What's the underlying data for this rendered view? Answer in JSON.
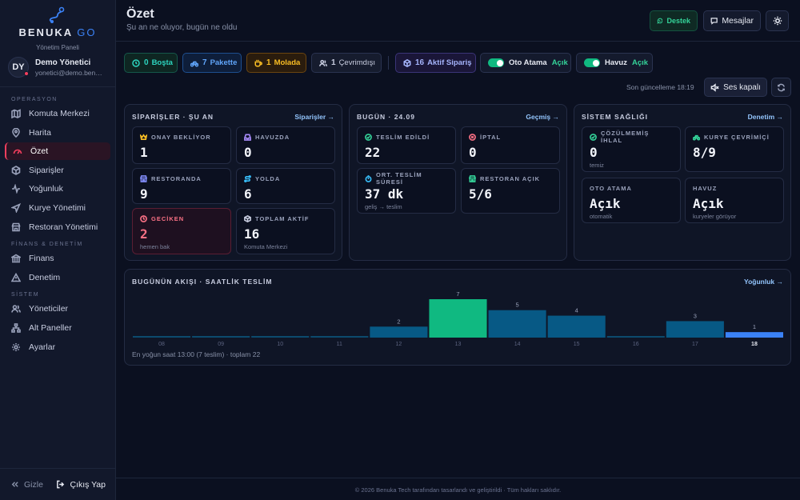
{
  "sidebar": {
    "brand_main": "BENUKA",
    "brand_accent": "GO",
    "panel_label": "Yönetim Paneli",
    "user": {
      "initials": "DY",
      "name": "Demo Yönetici",
      "email": "yonetici@demo.benukago.com"
    },
    "sections": [
      {
        "title": "OPERASYON",
        "items": [
          {
            "label": "Komuta Merkezi",
            "icon": "map-icon"
          },
          {
            "label": "Harita",
            "icon": "map-pin-icon"
          },
          {
            "label": "Özet",
            "icon": "gauge-icon",
            "active": true
          },
          {
            "label": "Siparişler",
            "icon": "package-icon"
          },
          {
            "label": "Yoğunluk",
            "icon": "activity-icon"
          },
          {
            "label": "Kurye Yönetimi",
            "icon": "navigation-icon"
          },
          {
            "label": "Restoran Yönetimi",
            "icon": "store-icon"
          }
        ]
      },
      {
        "title": "FİNANS & DENETİM",
        "items": [
          {
            "label": "Finans",
            "icon": "bank-icon"
          },
          {
            "label": "Denetim",
            "icon": "warning-icon"
          }
        ]
      },
      {
        "title": "SİSTEM",
        "items": [
          {
            "label": "Yöneticiler",
            "icon": "users-icon"
          },
          {
            "label": "Alt Paneller",
            "icon": "sitemap-icon"
          },
          {
            "label": "Ayarlar",
            "icon": "gear-icon"
          }
        ]
      }
    ],
    "hide_label": "Gizle",
    "logout_label": "Çıkış Yap"
  },
  "header": {
    "title": "Özet",
    "subtitle": "Şu an ne oluyor, bugün ne oldu",
    "support_label": "Destek",
    "messages_label": "Mesajlar"
  },
  "status": {
    "bosta": {
      "count": "0",
      "label": "Boşta"
    },
    "pakette": {
      "count": "7",
      "label": "Pakette"
    },
    "molada": {
      "count": "1",
      "label": "Molada"
    },
    "cevrimdisi": {
      "count": "1",
      "label": "Çevrimdışı"
    },
    "aktif_siparis": {
      "count": "16",
      "label": "Aktif Sipariş"
    },
    "oto_atama": {
      "label": "Oto Atama",
      "value": "Açık"
    },
    "havuz": {
      "label": "Havuz",
      "value": "Açık"
    },
    "updated": "Son güncelleme 18:19",
    "sound_label": "Ses kapalı"
  },
  "orders_card": {
    "title": "SİPARİŞLER · ŞU AN",
    "link": "Siparişler →",
    "tiles": {
      "onay": {
        "label": "ONAY BEKLİYOR",
        "value": "1"
      },
      "havuzda": {
        "label": "HAVUZDA",
        "value": "0"
      },
      "restoranda": {
        "label": "RESTORANDA",
        "value": "9"
      },
      "yolda": {
        "label": "YOLDA",
        "value": "6"
      },
      "geciken": {
        "label": "GECİKEN",
        "value": "2",
        "sub": "hemen bak"
      },
      "toplam": {
        "label": "TOPLAM AKTİF",
        "value": "16",
        "sub": "Komuta Merkezi"
      }
    }
  },
  "today_card": {
    "title": "BUGÜN · 24.09",
    "link": "Geçmiş →",
    "tiles": {
      "teslim": {
        "label": "TESLİM EDİLDİ",
        "value": "22"
      },
      "iptal": {
        "label": "İPTAL",
        "value": "0"
      },
      "ort": {
        "label": "ORT. TESLİM SÜRESİ",
        "value": "37 dk",
        "sub": "geliş → teslim"
      },
      "restoran_acik": {
        "label": "RESTORAN AÇIK",
        "value": "5/6"
      }
    }
  },
  "health_card": {
    "title": "SİSTEM SAĞLIĞI",
    "link": "Denetim →",
    "tiles": {
      "ihlal": {
        "label": "ÇÖZÜLMEMİŞ İHLAL",
        "value": "0",
        "sub": "temiz"
      },
      "kurye": {
        "label": "KURYE ÇEVRİMİÇİ",
        "value": "8/9"
      },
      "oto": {
        "label": "OTO ATAMA",
        "value": "Açık",
        "sub": "otomatik"
      },
      "havuz": {
        "label": "HAVUZ",
        "value": "Açık",
        "sub": "kuryeler görüyor"
      }
    }
  },
  "flow": {
    "title": "BUGÜNÜN AKIŞI · SAATLİK TESLİM",
    "link": "Yoğunluk →",
    "summary": "En yoğun saat 13:00 (7 teslim) · toplam 22"
  },
  "chart_data": {
    "type": "bar",
    "categories": [
      "08",
      "09",
      "10",
      "11",
      "12",
      "13",
      "14",
      "15",
      "16",
      "17",
      "18"
    ],
    "values": [
      0,
      0,
      0,
      0,
      2,
      7,
      5,
      4,
      0,
      3,
      1
    ],
    "highlight_peak": "13",
    "current": "18",
    "colors": {
      "normal": "#075985",
      "peak": "#10b981",
      "current": "#3b82f6"
    }
  },
  "footer": "© 2026 Benuka Tech tarafından tasarlandı ve geliştirildi · Tüm hakları saklıdır."
}
